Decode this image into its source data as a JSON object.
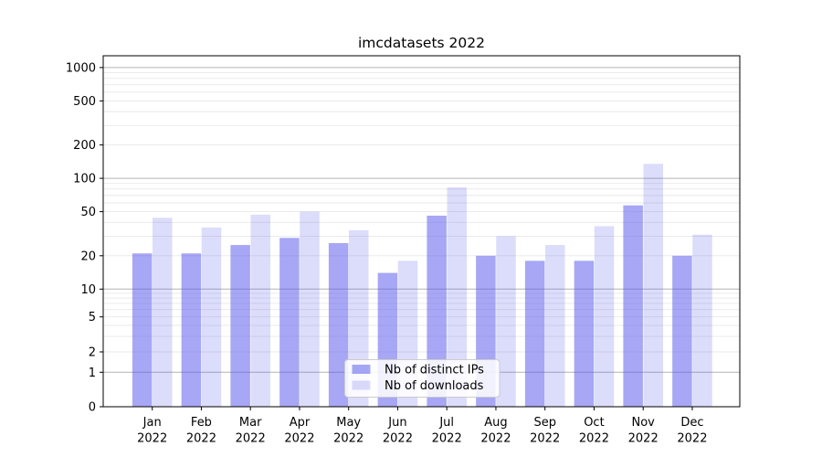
{
  "chart_data": {
    "type": "bar",
    "title": "imcdatasets 2022",
    "categories": [
      "Jan 2022",
      "Feb 2022",
      "Mar 2022",
      "Apr 2022",
      "May 2022",
      "Jun 2022",
      "Jul 2022",
      "Aug 2022",
      "Sep 2022",
      "Oct 2022",
      "Nov 2022",
      "Dec 2022"
    ],
    "x_tick_months": [
      "Jan",
      "Feb",
      "Mar",
      "Apr",
      "May",
      "Jun",
      "Jul",
      "Aug",
      "Sep",
      "Oct",
      "Nov",
      "Dec"
    ],
    "x_tick_year": "2022",
    "series": [
      {
        "name": "Nb of distinct IPs",
        "color": "#a7a7f5",
        "fill_rgba": "rgba(80,80,235,0.5)",
        "values": [
          21,
          21,
          25,
          29,
          26,
          14,
          46,
          20,
          18,
          18,
          57,
          20
        ]
      },
      {
        "name": "Nb of downloads",
        "color": "#dcdcf9",
        "fill_rgba": "rgba(80,80,235,0.2)",
        "values": [
          44,
          36,
          47,
          50,
          34,
          18,
          83,
          30,
          25,
          37,
          135,
          31
        ]
      }
    ],
    "xlabel": "",
    "ylabel": "",
    "yscale": "symlog",
    "ytick_values": [
      0,
      1,
      2,
      5,
      10,
      20,
      50,
      100,
      200,
      500,
      1000
    ],
    "ylim": [
      0,
      1300
    ],
    "grid": true,
    "grid_major_color": "#b4b4b4",
    "grid_minor_color": "#e8e8e8",
    "legend_position": "lower center"
  }
}
